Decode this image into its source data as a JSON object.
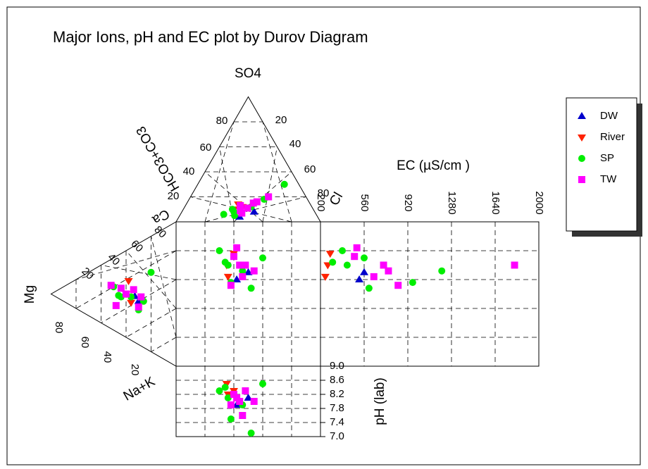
{
  "chart_data": {
    "type": "scatter",
    "diagram": "durov",
    "title": "Major Ions, pH and EC  plot by Durov Diagram",
    "legend": {
      "placement": "right",
      "entries": [
        {
          "name": "DW",
          "marker": "triangle-up",
          "color": "#0000cc"
        },
        {
          "name": "River",
          "marker": "triangle-down",
          "color": "#ff2200"
        },
        {
          "name": "SP",
          "marker": "circle",
          "color": "#00ee00"
        },
        {
          "name": "TW",
          "marker": "square",
          "color": "#ff00ff"
        }
      ]
    },
    "anion_triangle": {
      "apex_label": "SO4",
      "left_label": "HCO3+CO3",
      "right_label": "Cl",
      "left_ticks": [
        "80",
        "60",
        "40",
        "20"
      ],
      "right_ticks": [
        "20",
        "40",
        "60",
        "80"
      ]
    },
    "cation_triangle": {
      "apex_label": "Mg",
      "top_label": "Ca",
      "bottom_label": "Na+K",
      "upper_ticks": [
        "80",
        "60",
        "40",
        "20"
      ],
      "lower_ticks": [
        "80",
        "60",
        "40",
        "20"
      ]
    },
    "ec_panel": {
      "xlabel": "EC (µS/cm )",
      "ticks": [
        "200",
        "560",
        "920",
        "1280",
        "1640",
        "2000"
      ],
      "xlim": [
        200,
        2000
      ],
      "grid": true
    },
    "ph_panel": {
      "ylabel": "pH (lab)",
      "ticks": [
        "9.0",
        "8.6",
        "8.2",
        "7.8",
        "7.4",
        "7.0"
      ],
      "ylim": [
        7.0,
        9.0
      ],
      "grid": true
    },
    "points": {
      "DW": [
        {
          "so4": 8,
          "cl": 50,
          "mg": 33,
          "na": 35,
          "ec": 560,
          "ph": 8.1
        },
        {
          "so4": 4,
          "cl": 42,
          "mg": 30,
          "na": 40,
          "ec": 520,
          "ph": 7.9
        }
      ],
      "River": [
        {
          "so4": 10,
          "cl": 35,
          "mg": 40,
          "na": 30,
          "ec": 260,
          "ph": 8.5
        },
        {
          "so4": 12,
          "cl": 40,
          "mg": 38,
          "na": 22,
          "ec": 280,
          "ph": 8.3
        },
        {
          "so4": 14,
          "cl": 36,
          "mg": 36,
          "na": 38,
          "ec": 240,
          "ph": 8.2
        }
      ],
      "SP": [
        {
          "so4": 30,
          "cl": 60,
          "mg": 20,
          "na": 25,
          "ec": 560,
          "ph": 8.5
        },
        {
          "so4": 6,
          "cl": 30,
          "mg": 50,
          "na": 20,
          "ec": 380,
          "ph": 8.3
        },
        {
          "so4": 8,
          "cl": 36,
          "mg": 44,
          "na": 30,
          "ec": 420,
          "ph": 8.1
        },
        {
          "so4": 12,
          "cl": 46,
          "mg": 36,
          "na": 34,
          "ec": 1200,
          "ph": 7.9
        },
        {
          "so4": 5,
          "cl": 38,
          "mg": 26,
          "na": 42,
          "ec": 960,
          "ph": 7.5
        },
        {
          "so4": 10,
          "cl": 34,
          "mg": 46,
          "na": 28,
          "ec": 300,
          "ph": 8.4
        },
        {
          "so4": 18,
          "cl": 52,
          "mg": 30,
          "na": 46,
          "ec": 600,
          "ph": 7.1
        }
      ],
      "TW": [
        {
          "so4": 16,
          "cl": 48,
          "mg": 34,
          "na": 30,
          "ec": 1800,
          "ph": 8.3
        },
        {
          "so4": 9,
          "cl": 40,
          "mg": 44,
          "na": 24,
          "ec": 480,
          "ph": 8.2
        },
        {
          "so4": 11,
          "cl": 44,
          "mg": 40,
          "na": 30,
          "ec": 720,
          "ph": 8.0
        },
        {
          "so4": 13,
          "cl": 38,
          "mg": 30,
          "na": 44,
          "ec": 840,
          "ph": 7.9
        },
        {
          "so4": 7,
          "cl": 42,
          "mg": 52,
          "na": 18,
          "ec": 500,
          "ph": 8.1
        },
        {
          "so4": 15,
          "cl": 46,
          "mg": 28,
          "na": 38,
          "ec": 640,
          "ph": 7.6
        },
        {
          "so4": 20,
          "cl": 54,
          "mg": 48,
          "na": 34,
          "ec": 760,
          "ph": 8.0
        }
      ]
    }
  }
}
